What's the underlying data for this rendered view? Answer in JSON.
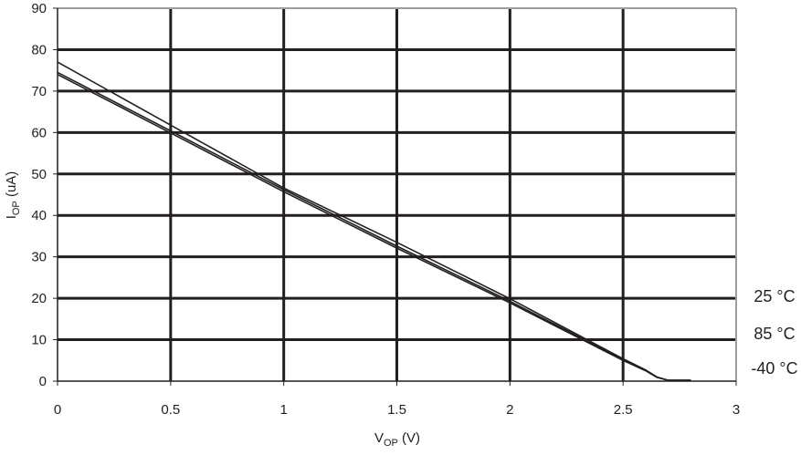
{
  "chart_data": {
    "type": "line",
    "title": "",
    "xlabel": {
      "main": "V",
      "sub": "OP",
      "unit": " (V)"
    },
    "ylabel": {
      "main": "I",
      "sub": "OP",
      "unit": " (uA)"
    },
    "xlim": [
      0,
      3
    ],
    "ylim": [
      0,
      90
    ],
    "xticks": [
      0,
      0.5,
      1,
      1.5,
      2,
      2.5,
      3
    ],
    "xtick_labels": [
      "0",
      "0.5",
      "1",
      "1.5",
      "2",
      "2.5",
      "3"
    ],
    "yticks": [
      0,
      10,
      20,
      30,
      40,
      50,
      60,
      70,
      80,
      90
    ],
    "ytick_labels": [
      "0",
      "10",
      "20",
      "30",
      "40",
      "50",
      "60",
      "70",
      "80",
      "90"
    ],
    "grid": true,
    "legend_position": "right",
    "series": [
      {
        "name": "25 °C",
        "x": [
          0,
          0.5,
          1,
          1.5,
          2,
          2.5,
          2.6,
          2.65,
          2.7,
          2.8
        ],
        "y": [
          77.0,
          61.8,
          46.6,
          33.5,
          19.9,
          5.4,
          2.7,
          1.0,
          0.2,
          0.2
        ]
      },
      {
        "name": "85 °C",
        "x": [
          0,
          0.5,
          1,
          1.5,
          2,
          2.5,
          2.6,
          2.65,
          2.7,
          2.8
        ],
        "y": [
          74.5,
          60.4,
          46.2,
          32.6,
          19.3,
          5.2,
          2.6,
          1.0,
          0.2,
          0.2
        ]
      },
      {
        "name": "-40 °C",
        "x": [
          0,
          0.5,
          1,
          1.5,
          2,
          2.5,
          2.6,
          2.65,
          2.7,
          2.8
        ],
        "y": [
          74.0,
          59.9,
          45.7,
          32.1,
          18.9,
          5.0,
          2.5,
          0.9,
          0.2,
          0.2
        ]
      }
    ]
  }
}
